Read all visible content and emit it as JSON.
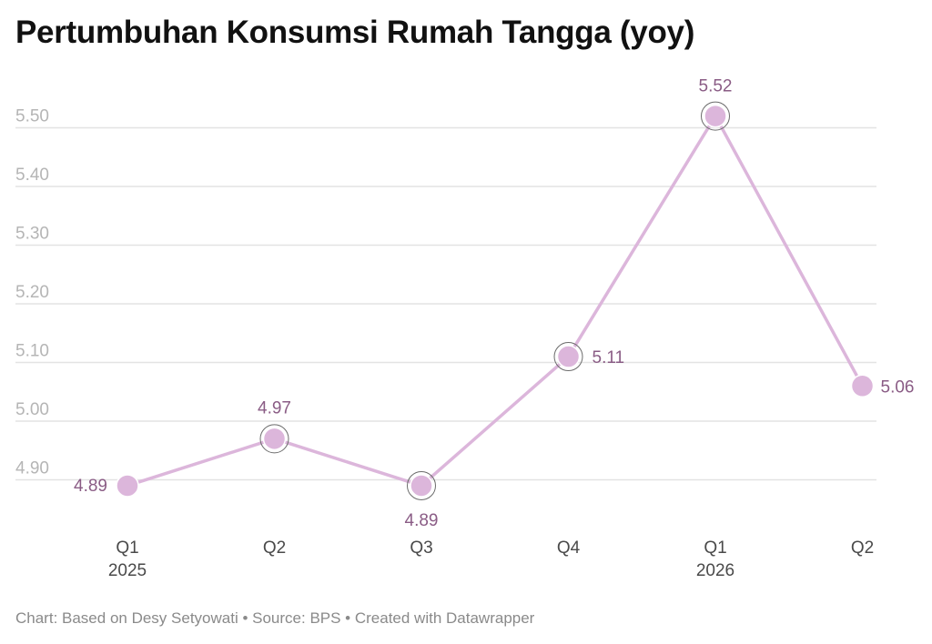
{
  "chart_data": {
    "type": "line",
    "title": "Pertumbuhan Konsumsi Rumah Tangga (yoy)",
    "categories": [
      "Q1 2025",
      "Q2 2025",
      "Q3 2025",
      "Q4 2025",
      "Q1 2026",
      "Q2 2026"
    ],
    "x_tick_labels": [
      {
        "quarter": "Q1",
        "year": "2025"
      },
      {
        "quarter": "Q2",
        "year": ""
      },
      {
        "quarter": "Q3",
        "year": ""
      },
      {
        "quarter": "Q4",
        "year": ""
      },
      {
        "quarter": "Q1",
        "year": "2026"
      },
      {
        "quarter": "Q2",
        "year": ""
      }
    ],
    "series": [
      {
        "values": [
          4.89,
          4.97,
          4.89,
          5.11,
          5.52,
          5.06
        ]
      }
    ],
    "data_labels": [
      "4.89",
      "4.97",
      "4.89",
      "5.11",
      "5.52",
      "5.06"
    ],
    "y_ticks": [
      "4.90",
      "5.00",
      "5.10",
      "5.20",
      "5.30",
      "5.40",
      "5.50"
    ],
    "ylim": [
      4.88,
      5.52
    ],
    "grid": true,
    "xlabel": "",
    "ylabel": "",
    "colors": {
      "line": "#dcb6db",
      "point": "#dcb6db",
      "label": "#8a5c85",
      "grid": "#e3e3e3",
      "ytick": "#b5b5b5"
    }
  },
  "footer": "Chart: Based on Desy Setyowati • Source: BPS • Created with Datawrapper"
}
